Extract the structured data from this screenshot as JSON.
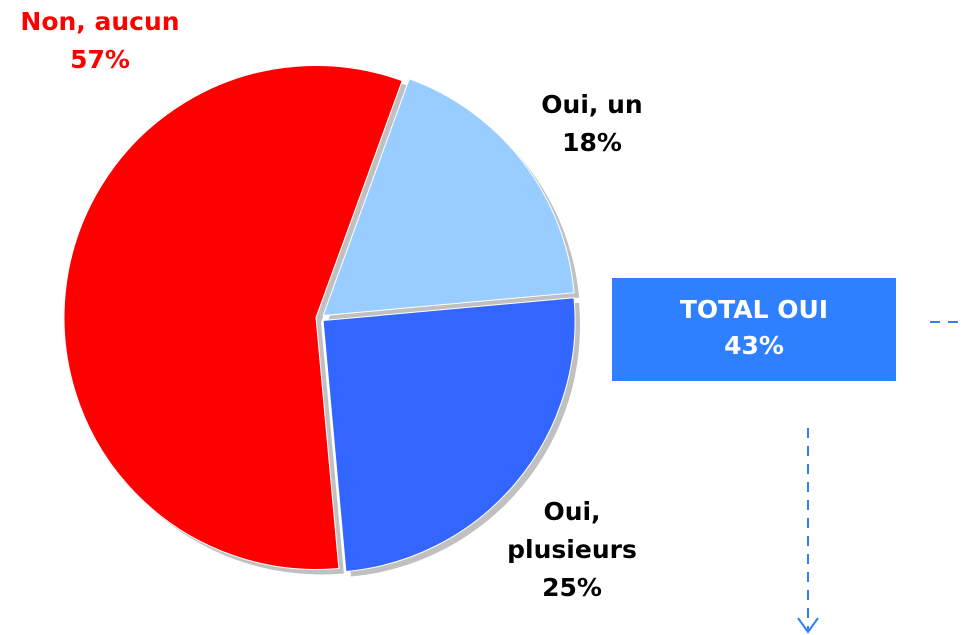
{
  "chart_data": {
    "type": "pie",
    "categories": [
      "Oui, un",
      "Oui, plusieurs",
      "Non, aucun"
    ],
    "values": [
      18,
      25,
      57
    ],
    "value_labels": [
      "18%",
      "25%",
      "57%"
    ],
    "colors": [
      "#99ccff",
      "#3366ff",
      "#ff0000"
    ],
    "label_colors": [
      "#000000",
      "#000000",
      "#ff0000"
    ],
    "annotations": [
      {
        "text": "TOTAL OUI"
      },
      {
        "text": "43%"
      }
    ]
  }
}
